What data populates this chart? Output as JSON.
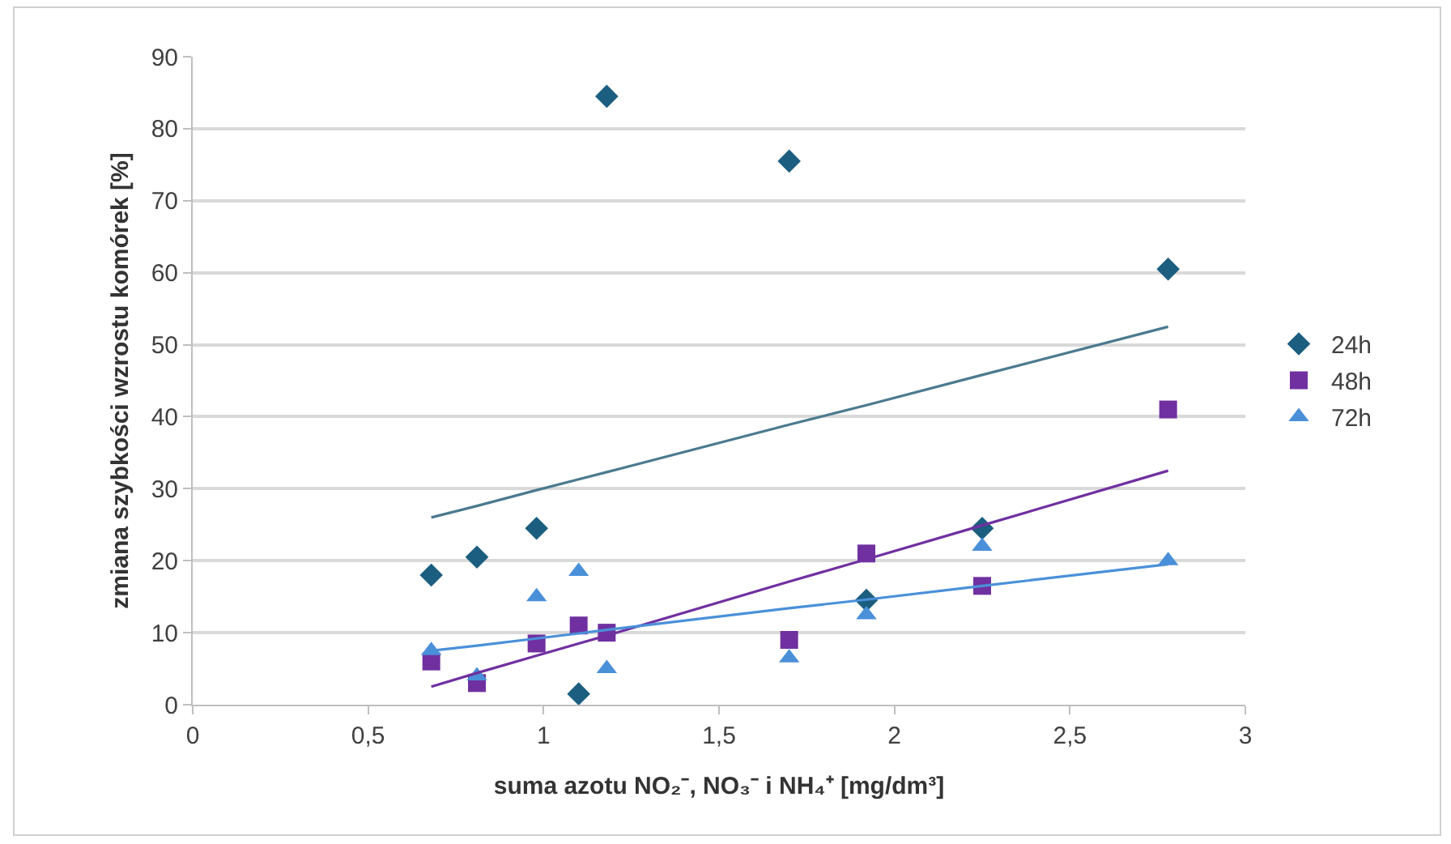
{
  "chart_data": {
    "type": "scatter",
    "xlabel": "suma azotu NO₂⁻, NO₃⁻ i NH₄⁺ [mg/dm³]",
    "ylabel": "zmiana szybkości wzrostu komórek [%]",
    "x": [
      0.68,
      0.81,
      0.98,
      1.1,
      1.18,
      1.7,
      1.92,
      2.25,
      2.78
    ],
    "series": [
      {
        "name": "24h",
        "color": "#1b5e80",
        "marker": "diamond",
        "values": [
          18,
          20.5,
          24.5,
          1.5,
          84.5,
          75.5,
          14.5,
          24.5,
          60.5
        ]
      },
      {
        "name": "48h",
        "color": "#7030a0",
        "marker": "square",
        "values": [
          6,
          3,
          8.5,
          11,
          10,
          9,
          21,
          16.5,
          41
        ]
      },
      {
        "name": "72h",
        "color": "#4a90d9",
        "marker": "triangle",
        "values": [
          7.5,
          4,
          15,
          18.5,
          5,
          6.5,
          12.5,
          22,
          20
        ]
      },
      {
        "type": "line",
        "color": "#4b7a8f",
        "values": [
          26,
          27.6,
          29.8,
          31.3,
          32.3,
          38.9,
          41.6,
          45.8,
          52.5
        ]
      },
      {
        "type": "line",
        "color": "#7030a0",
        "values": [
          2.5,
          4.4,
          6.8,
          8.5,
          9.6,
          17.1,
          20.2,
          24.9,
          32.5
        ]
      },
      {
        "type": "line",
        "color": "#4a90d9",
        "values": [
          7.5,
          8.2,
          9.2,
          9.9,
          10.4,
          13.4,
          14.6,
          16.5,
          19.5
        ]
      }
    ],
    "xlim": [
      0,
      3
    ],
    "xticks": [
      0,
      {
        "value": 0.5,
        "label": "0,5"
      },
      1,
      {
        "value": 1.5,
        "label": "1,5"
      },
      2,
      {
        "value": 2.5,
        "label": "2,5"
      },
      3
    ],
    "ylim": [
      0,
      90
    ],
    "yticks": [
      0,
      10,
      20,
      30,
      40,
      50,
      60,
      70,
      80,
      90
    ],
    "grid": "y",
    "legend": "right",
    "line_style": "solid"
  }
}
